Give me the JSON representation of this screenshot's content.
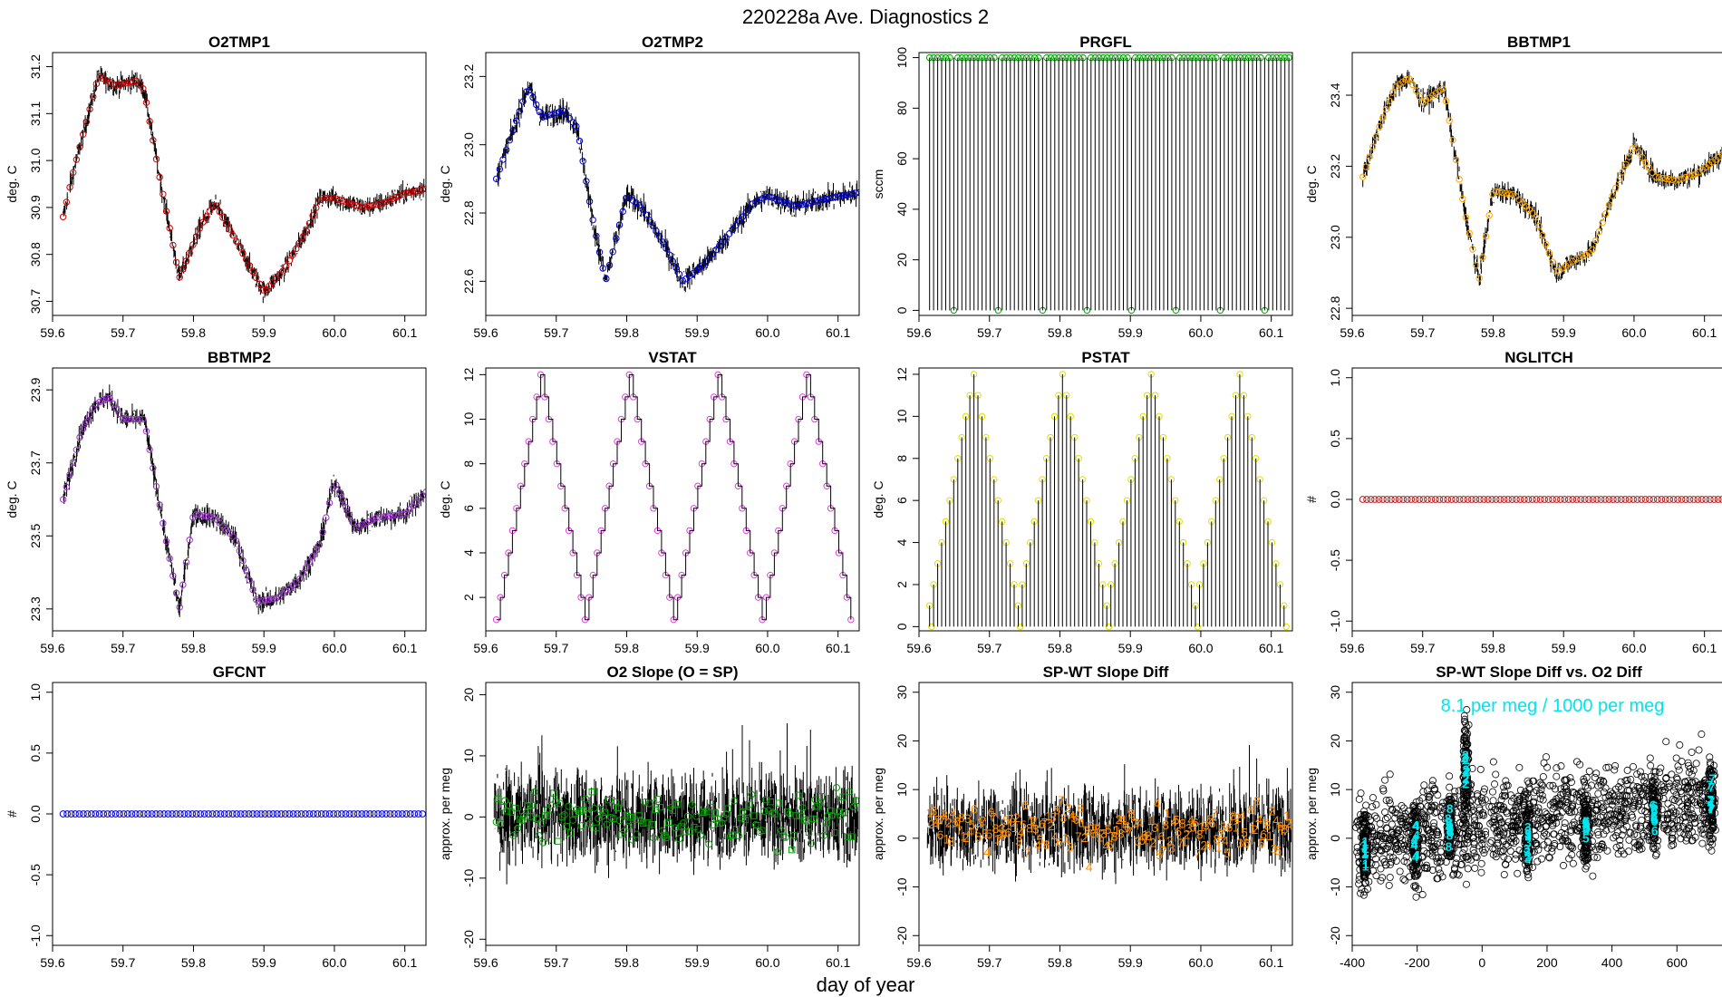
{
  "figure": {
    "title": "220228a   Ave. Diagnostics 2",
    "xlabel": "day of year"
  },
  "colors": {
    "red": "#cc0000",
    "blue": "#0000cc",
    "green": "#00a000",
    "orange": "#ffa500",
    "purple": "#9a32cd",
    "magenta": "#e040e0",
    "yellow": "#e0e000",
    "brick": "#b22222",
    "cyan": "#00e5ee",
    "text_orange": "#ff8c00"
  },
  "chart_data": [
    {
      "id": "o2tmp1",
      "type": "line",
      "title": "O2TMP1",
      "ylabel": "deg. C",
      "xlim": [
        59.6,
        60.13
      ],
      "ylim": [
        30.67,
        31.23
      ],
      "xticks": [
        "59.6",
        "59.7",
        "59.8",
        "59.9",
        "60.0",
        "60.1"
      ],
      "yticks": [
        "30.7",
        "30.8",
        "30.9",
        "31.0",
        "31.1",
        "31.2"
      ],
      "marker_color": "red",
      "marker": "circle",
      "noise": 0.022,
      "x": [
        59.615,
        59.63,
        59.66,
        59.665,
        59.69,
        59.72,
        59.73,
        59.75,
        59.78,
        59.81,
        59.83,
        59.86,
        59.9,
        59.93,
        59.96,
        59.98,
        60.0,
        60.04,
        60.07,
        60.1,
        60.13
      ],
      "y": [
        30.88,
        30.98,
        31.15,
        31.18,
        31.16,
        31.17,
        31.15,
        30.98,
        30.75,
        30.86,
        30.91,
        30.83,
        30.72,
        30.77,
        30.85,
        30.92,
        30.92,
        30.9,
        30.91,
        30.93,
        30.94
      ]
    },
    {
      "id": "o2tmp2",
      "type": "line",
      "title": "O2TMP2",
      "ylabel": "deg. C",
      "xlim": [
        59.6,
        60.13
      ],
      "ylim": [
        22.5,
        23.27
      ],
      "xticks": [
        "59.6",
        "59.7",
        "59.8",
        "59.9",
        "60.0",
        "60.1"
      ],
      "yticks": [
        "22.6",
        "22.8",
        "23.0",
        "23.2"
      ],
      "marker_color": "blue",
      "marker": "circle",
      "noise": 0.035,
      "x": [
        59.615,
        59.64,
        59.66,
        59.68,
        59.71,
        59.73,
        59.75,
        59.77,
        59.8,
        59.82,
        59.85,
        59.88,
        59.91,
        59.95,
        59.98,
        60.0,
        60.04,
        60.08,
        60.13
      ],
      "y": [
        22.9,
        23.05,
        23.17,
        23.08,
        23.1,
        23.05,
        22.8,
        22.6,
        22.85,
        22.82,
        22.72,
        22.6,
        22.65,
        22.75,
        22.83,
        22.85,
        22.82,
        22.84,
        22.86
      ]
    },
    {
      "id": "prgfl",
      "type": "line",
      "title": "PRGFL",
      "ylabel": "sccm",
      "xlim": [
        59.6,
        60.13
      ],
      "ylim": [
        -2,
        102
      ],
      "xticks": [
        "59.6",
        "59.7",
        "59.8",
        "59.9",
        "60.0",
        "60.1"
      ],
      "yticks": [
        "0",
        "20",
        "40",
        "60",
        "80",
        "100"
      ],
      "marker_color": "green",
      "marker": "circle",
      "spikes": {
        "start": 59.615,
        "end": 60.125,
        "n": 90,
        "low": 0,
        "high": 100,
        "gap_every": 11
      }
    },
    {
      "id": "bbtmp1",
      "type": "line",
      "title": "BBTMP1",
      "ylabel": "deg. C",
      "xlim": [
        59.6,
        60.13
      ],
      "ylim": [
        22.78,
        23.52
      ],
      "xticks": [
        "59.6",
        "59.7",
        "59.8",
        "59.9",
        "60.0",
        "60.1"
      ],
      "yticks": [
        "22.8",
        "23.0",
        "23.2",
        "23.4"
      ],
      "marker_color": "orange",
      "marker": "circle",
      "noise": 0.03,
      "x": [
        59.615,
        59.64,
        59.66,
        59.68,
        59.7,
        59.73,
        59.76,
        59.78,
        59.8,
        59.83,
        59.86,
        59.89,
        59.91,
        59.94,
        59.97,
        60.0,
        60.03,
        60.06,
        60.09,
        60.13
      ],
      "y": [
        23.17,
        23.32,
        23.42,
        23.45,
        23.38,
        23.42,
        23.07,
        22.88,
        23.13,
        23.12,
        23.06,
        22.9,
        22.93,
        22.96,
        23.12,
        23.26,
        23.17,
        23.16,
        23.18,
        23.24
      ]
    },
    {
      "id": "bbtmp2",
      "type": "line",
      "title": "BBTMP2",
      "ylabel": "deg. C",
      "xlim": [
        59.6,
        60.13
      ],
      "ylim": [
        23.24,
        23.96
      ],
      "xticks": [
        "59.6",
        "59.7",
        "59.8",
        "59.9",
        "60.0",
        "60.1"
      ],
      "yticks": [
        "23.3",
        "23.5",
        "23.7",
        "23.9"
      ],
      "marker_color": "purple",
      "marker": "circle",
      "noise": 0.03,
      "x": [
        59.615,
        59.64,
        59.66,
        59.68,
        59.7,
        59.73,
        59.76,
        59.78,
        59.8,
        59.83,
        59.86,
        59.89,
        59.92,
        59.95,
        59.98,
        60.0,
        60.03,
        60.06,
        60.1,
        60.13
      ],
      "y": [
        23.6,
        23.78,
        23.86,
        23.88,
        23.82,
        23.82,
        23.5,
        23.3,
        23.56,
        23.55,
        23.49,
        23.32,
        23.33,
        23.38,
        23.48,
        23.65,
        23.52,
        23.55,
        23.56,
        23.62
      ]
    },
    {
      "id": "vstat",
      "type": "line",
      "title": "VSTAT",
      "ylabel": "deg. C",
      "xlim": [
        59.6,
        60.13
      ],
      "ylim": [
        0.5,
        12.3
      ],
      "xticks": [
        "59.6",
        "59.7",
        "59.8",
        "59.9",
        "60.0",
        "60.1"
      ],
      "yticks": [
        "2",
        "4",
        "6",
        "8",
        "10",
        "12"
      ],
      "marker_color": "magenta",
      "marker": "circle",
      "triangle": {
        "start": 59.615,
        "period": 0.1258,
        "cycles": 4,
        "min": 1,
        "max": 12,
        "steps_per_cycle": 22
      }
    },
    {
      "id": "pstat",
      "type": "line",
      "title": "PSTAT",
      "ylabel": "deg. C",
      "xlim": [
        59.6,
        60.13
      ],
      "ylim": [
        -0.2,
        12.3
      ],
      "xticks": [
        "59.6",
        "59.7",
        "59.8",
        "59.9",
        "60.0",
        "60.1"
      ],
      "yticks": [
        "0",
        "2",
        "4",
        "6",
        "8",
        "10",
        "12"
      ],
      "marker_color": "yellow",
      "marker": "circle",
      "triangle": {
        "start": 59.615,
        "period": 0.1258,
        "cycles": 4,
        "min": 1,
        "max": 12,
        "steps_per_cycle": 22,
        "drop_to_zero": true
      }
    },
    {
      "id": "nglitch",
      "type": "line",
      "title": "NGLITCH",
      "ylabel": "#",
      "xlim": [
        59.6,
        60.13
      ],
      "ylim": [
        -1.08,
        1.08
      ],
      "xticks": [
        "59.6",
        "59.7",
        "59.8",
        "59.9",
        "60.0",
        "60.1"
      ],
      "yticks": [
        "-1.0",
        "-0.5",
        "0.0",
        "0.5",
        "1.0"
      ],
      "marker_color": "brick",
      "marker": "circle",
      "constant": {
        "start": 59.615,
        "end": 60.125,
        "n": 90,
        "value": 0
      }
    },
    {
      "id": "gfcnt",
      "type": "line",
      "title": "GFCNT",
      "ylabel": "#",
      "xlim": [
        59.6,
        60.13
      ],
      "ylim": [
        -1.08,
        1.08
      ],
      "xticks": [
        "59.6",
        "59.7",
        "59.8",
        "59.9",
        "60.0",
        "60.1"
      ],
      "yticks": [
        "-1.0",
        "-0.5",
        "0.0",
        "0.5",
        "1.0"
      ],
      "marker_color": "blue",
      "marker": "circle",
      "constant": {
        "start": 59.615,
        "end": 60.125,
        "n": 90,
        "value": 0
      }
    },
    {
      "id": "o2slope",
      "type": "line",
      "title": "O2 Slope (O = SP)",
      "ylabel": "approx. per meg",
      "xlim": [
        59.6,
        60.13
      ],
      "ylim": [
        -21,
        22
      ],
      "xticks": [
        "59.6",
        "59.7",
        "59.8",
        "59.9",
        "60.0",
        "60.1"
      ],
      "yticks": [
        "-20",
        "-10",
        "0",
        "10",
        "20"
      ],
      "marker_color": "green",
      "marker": "mixed",
      "band": {
        "center": 0,
        "spread": 7,
        "spikes": 14
      }
    },
    {
      "id": "spwtdiff",
      "type": "line",
      "title": "SP-WT Slope Diff",
      "ylabel": "approx. per meg",
      "xlim": [
        59.6,
        60.13
      ],
      "ylim": [
        -22,
        32
      ],
      "xticks": [
        "59.6",
        "59.7",
        "59.8",
        "59.9",
        "60.0",
        "60.1"
      ],
      "yticks": [
        "-20",
        "-10",
        "0",
        "10",
        "20",
        "30"
      ],
      "marker_color": "text_orange",
      "marker": "digits",
      "band": {
        "center": 2,
        "spread": 8,
        "spikes": 16
      }
    },
    {
      "id": "scatter",
      "type": "scatter",
      "title": "SP-WT Slope Diff vs. O2 Diff",
      "ylabel": "approx. per meg",
      "xlim": [
        -400,
        750
      ],
      "ylim": [
        -22,
        32
      ],
      "xticks": [
        "-400",
        "-200",
        "0",
        "200",
        "400",
        "600"
      ],
      "yticks": [
        "-20",
        "-10",
        "0",
        "10",
        "20",
        "30"
      ],
      "annotation": "8.1 per meg / 1000 per meg",
      "clusters": [
        {
          "x": -360,
          "y": -3,
          "label": "1"
        },
        {
          "x": -205,
          "y": -1,
          "label": "4"
        },
        {
          "x": -100,
          "y": 2,
          "label": "8"
        },
        {
          "x": -50,
          "y": 14,
          "label": "2"
        },
        {
          "x": 140,
          "y": 0,
          "label": "3"
        },
        {
          "x": 320,
          "y": 2,
          "label": "5"
        },
        {
          "x": 530,
          "y": 5,
          "label": "6"
        },
        {
          "x": 705,
          "y": 7,
          "label": "7"
        }
      ]
    }
  ]
}
